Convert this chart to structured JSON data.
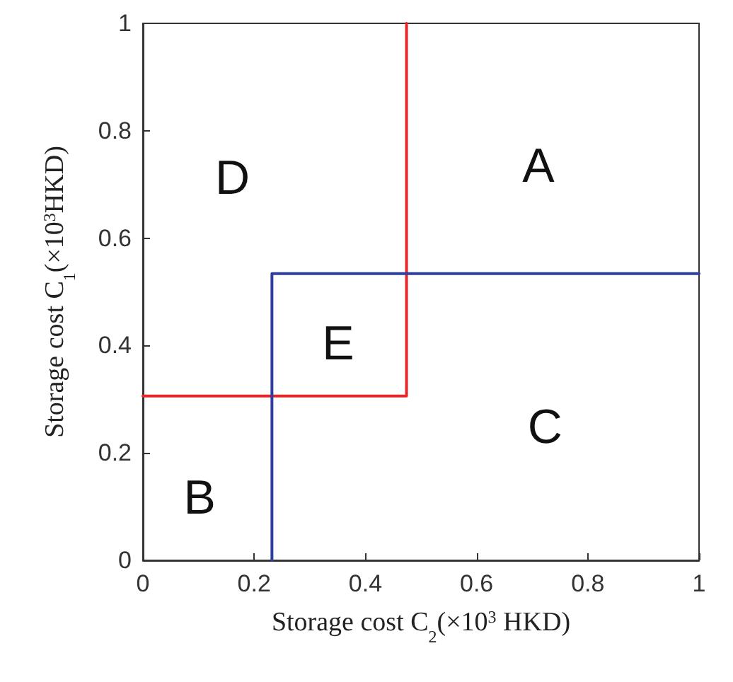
{
  "chart_data": {
    "type": "line",
    "xlabel": "Storage cost C$_{2}$(×10$^{3}$ HKD)",
    "ylabel": "Storage cost C$_{1}$(×10$^{3}$HKD)",
    "series": [
      {
        "color": "#e8262a",
        "x": [
          0,
          0.474,
          0.474
        ],
        "values": [
          0.306,
          0.306,
          1
        ]
      },
      {
        "color": "#2e3fa0",
        "x": [
          0.232,
          0.232,
          1
        ],
        "values": [
          0,
          0.534,
          0.534
        ]
      }
    ],
    "xlim": [
      0,
      1
    ],
    "ylim": [
      0,
      1
    ],
    "xticks": [
      0,
      0.2,
      0.4,
      0.6,
      0.8,
      1
    ],
    "yticks": [
      0,
      0.2,
      0.4,
      0.6,
      0.8,
      1
    ],
    "annotations": [
      "A",
      "B",
      "C",
      "D",
      "E"
    ],
    "grid": false,
    "marker": "none",
    "line_style": "solid"
  }
}
